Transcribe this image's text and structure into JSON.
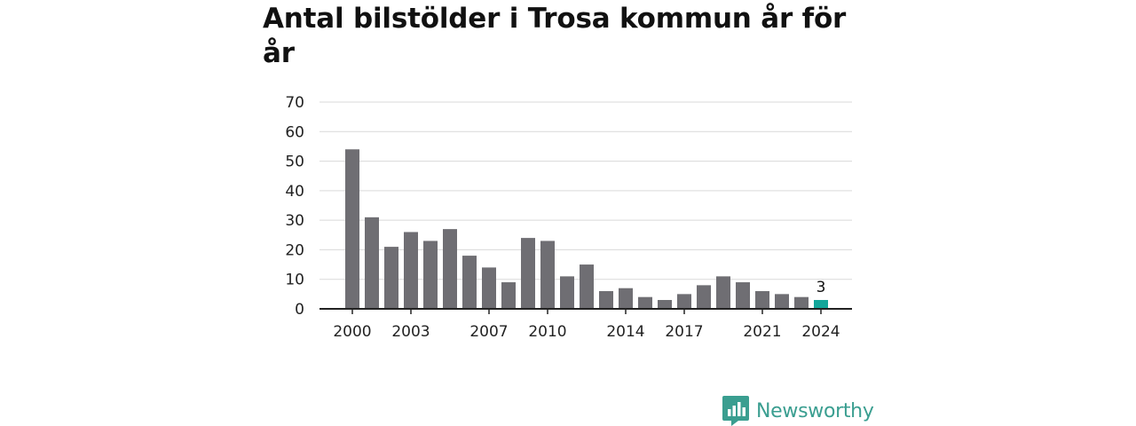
{
  "title": "Antal bilstölder i Trosa kommun år för år",
  "brand": {
    "name": "Newsworthy",
    "color": "#3a9e90"
  },
  "colors": {
    "bar": "#6f6e73",
    "highlight": "#13a69a",
    "grid": "#d9d9d9",
    "axis": "#222222"
  },
  "chart_data": {
    "type": "bar",
    "categories": [
      "2000",
      "2001",
      "2002",
      "2003",
      "2004",
      "2005",
      "2006",
      "2007",
      "2008",
      "2009",
      "2010",
      "2011",
      "2012",
      "2013",
      "2014",
      "2015",
      "2016",
      "2017",
      "2018",
      "2019",
      "2020",
      "2021",
      "2022",
      "2023",
      "2024"
    ],
    "values": [
      54,
      31,
      21,
      26,
      23,
      27,
      18,
      14,
      9,
      24,
      23,
      11,
      15,
      6,
      7,
      4,
      3,
      5,
      8,
      11,
      9,
      6,
      5,
      4,
      3
    ],
    "highlight_index": 24,
    "data_labels": [
      {
        "index": 24,
        "text": "3"
      }
    ],
    "x_tick_labels": [
      "2000",
      "2003",
      "2007",
      "2010",
      "2014",
      "2017",
      "2021",
      "2024"
    ],
    "y_ticks": [
      0,
      10,
      20,
      30,
      40,
      50,
      60,
      70
    ],
    "ylim": [
      0,
      70
    ],
    "grid": true,
    "xlabel": "",
    "ylabel": ""
  }
}
